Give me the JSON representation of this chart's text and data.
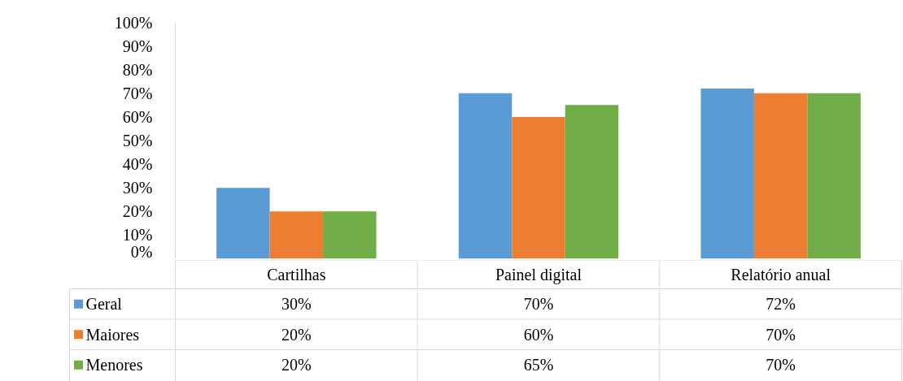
{
  "chart_data": {
    "type": "bar",
    "categories": [
      "Cartilhas",
      "Painel digital",
      "Relatório anual"
    ],
    "series": [
      {
        "name": "Geral",
        "color": "#5b9bd5",
        "values": [
          30,
          70,
          72
        ],
        "value_labels": [
          "30%",
          "70%",
          "72%"
        ]
      },
      {
        "name": "Maiores",
        "color": "#ed7d31",
        "values": [
          20,
          60,
          70
        ],
        "value_labels": [
          "20%",
          "60%",
          "70%"
        ]
      },
      {
        "name": "Menores",
        "color": "#70ad47",
        "values": [
          20,
          65,
          70
        ],
        "value_labels": [
          "20%",
          "65%",
          "70%"
        ]
      }
    ],
    "ylim": [
      0,
      100
    ],
    "yticks": [
      {
        "value": 0,
        "label": "0%"
      },
      {
        "value": 10,
        "label": "10%"
      },
      {
        "value": 20,
        "label": "20%"
      },
      {
        "value": 30,
        "label": "30%"
      },
      {
        "value": 40,
        "label": "40%"
      },
      {
        "value": 50,
        "label": "50%"
      },
      {
        "value": 60,
        "label": "60%"
      },
      {
        "value": 70,
        "label": "70%"
      },
      {
        "value": 80,
        "label": "80%"
      },
      {
        "value": 90,
        "label": "90%"
      },
      {
        "value": 100,
        "label": "100%"
      }
    ],
    "grid": false,
    "legend": "bottom"
  }
}
